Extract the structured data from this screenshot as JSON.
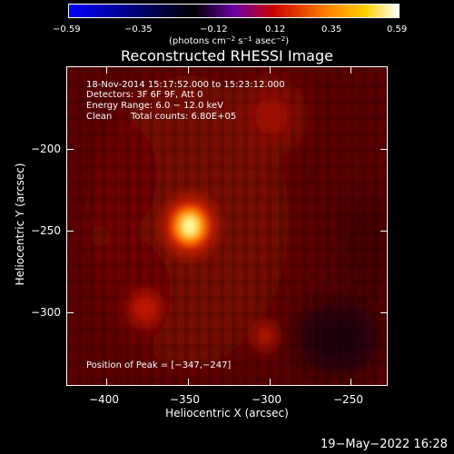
{
  "colorbar": {
    "ticks": [
      "−0.59",
      "−0.35",
      "−0.12",
      "0.12",
      "0.35",
      "0.59"
    ],
    "units": {
      "prefix": "(photons cm",
      "sup1": "−2",
      "mid1": " s",
      "sup2": "−1",
      "mid2": " asec",
      "sup3": "−2",
      "suffix": ")"
    },
    "gradient": [
      "#0000ff",
      "#000000",
      "#6a00a8",
      "#cc0000",
      "#ff8000",
      "#ffd000",
      "#ffffff"
    ]
  },
  "title": "Reconstructed RHESSI Image",
  "info": {
    "time": "18-Nov-2014 15:17:52.000 to 15:23:12.000",
    "detectors": "Detectors: 3F 6F 9F, Att 0",
    "energy": "Energy Range: 6.0 − 12.0 keV",
    "clean": "Clean",
    "counts": "Total counts: 6.80E+05",
    "peak": "Position of Peak = [−347,−247]"
  },
  "axes": {
    "xlabel": "Heliocentric X (arcsec)",
    "ylabel": "Heliocentric Y (arcsec)",
    "xticks": [
      "−400",
      "−350",
      "−300",
      "−250"
    ],
    "yticks": [
      "−200",
      "−250",
      "−300"
    ]
  },
  "footer": {
    "timestamp": "19−May−2022 16:28"
  }
}
